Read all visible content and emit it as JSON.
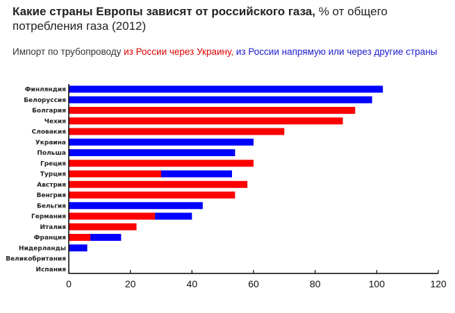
{
  "header": {
    "title_bold": "Какие страны Европы зависят от российского газа,",
    "title_rest": " % от общего потребления газа (2012)",
    "legend_prefix": "Импорт по трубопроводу ",
    "legend_red": "из России через Украину,",
    "legend_sep": " ",
    "legend_blue": "из России напрямую или через другие страны"
  },
  "colors": {
    "via_ukraine": "#ff0000",
    "direct": "#0000ff",
    "axis": "#000000"
  },
  "chart_data": {
    "type": "bar",
    "orientation": "horizontal",
    "stacked": true,
    "title": "Какие страны Европы зависят от российского газа, % от общего потребления газа (2012)",
    "categories": [
      "Финляндия",
      "Белоруссия",
      "Болгария",
      "Чехия",
      "Словакия",
      "Украина",
      "Польша",
      "Греция",
      "Турция",
      "Австрия",
      "Венгрия",
      "Бельгия",
      "Германия",
      "Италия",
      "Франция",
      "Нидерланды",
      "Великобритания",
      "Испания"
    ],
    "series": [
      {
        "name": "из России через Украину",
        "color": "#ff0000",
        "values": [
          0,
          0,
          93,
          89,
          70,
          0,
          0,
          60,
          30,
          58,
          54,
          0,
          28,
          22,
          7,
          0,
          0,
          0
        ]
      },
      {
        "name": "из России напрямую или через другие страны",
        "color": "#0000ff",
        "values": [
          102,
          98.5,
          0,
          0,
          0,
          60,
          54,
          0,
          23,
          0,
          0,
          43.5,
          12,
          0,
          10,
          6,
          0,
          0
        ]
      }
    ],
    "xticks": [
      0,
      20,
      40,
      60,
      80,
      100,
      120
    ],
    "xlim": [
      0,
      120
    ],
    "grid": false
  }
}
